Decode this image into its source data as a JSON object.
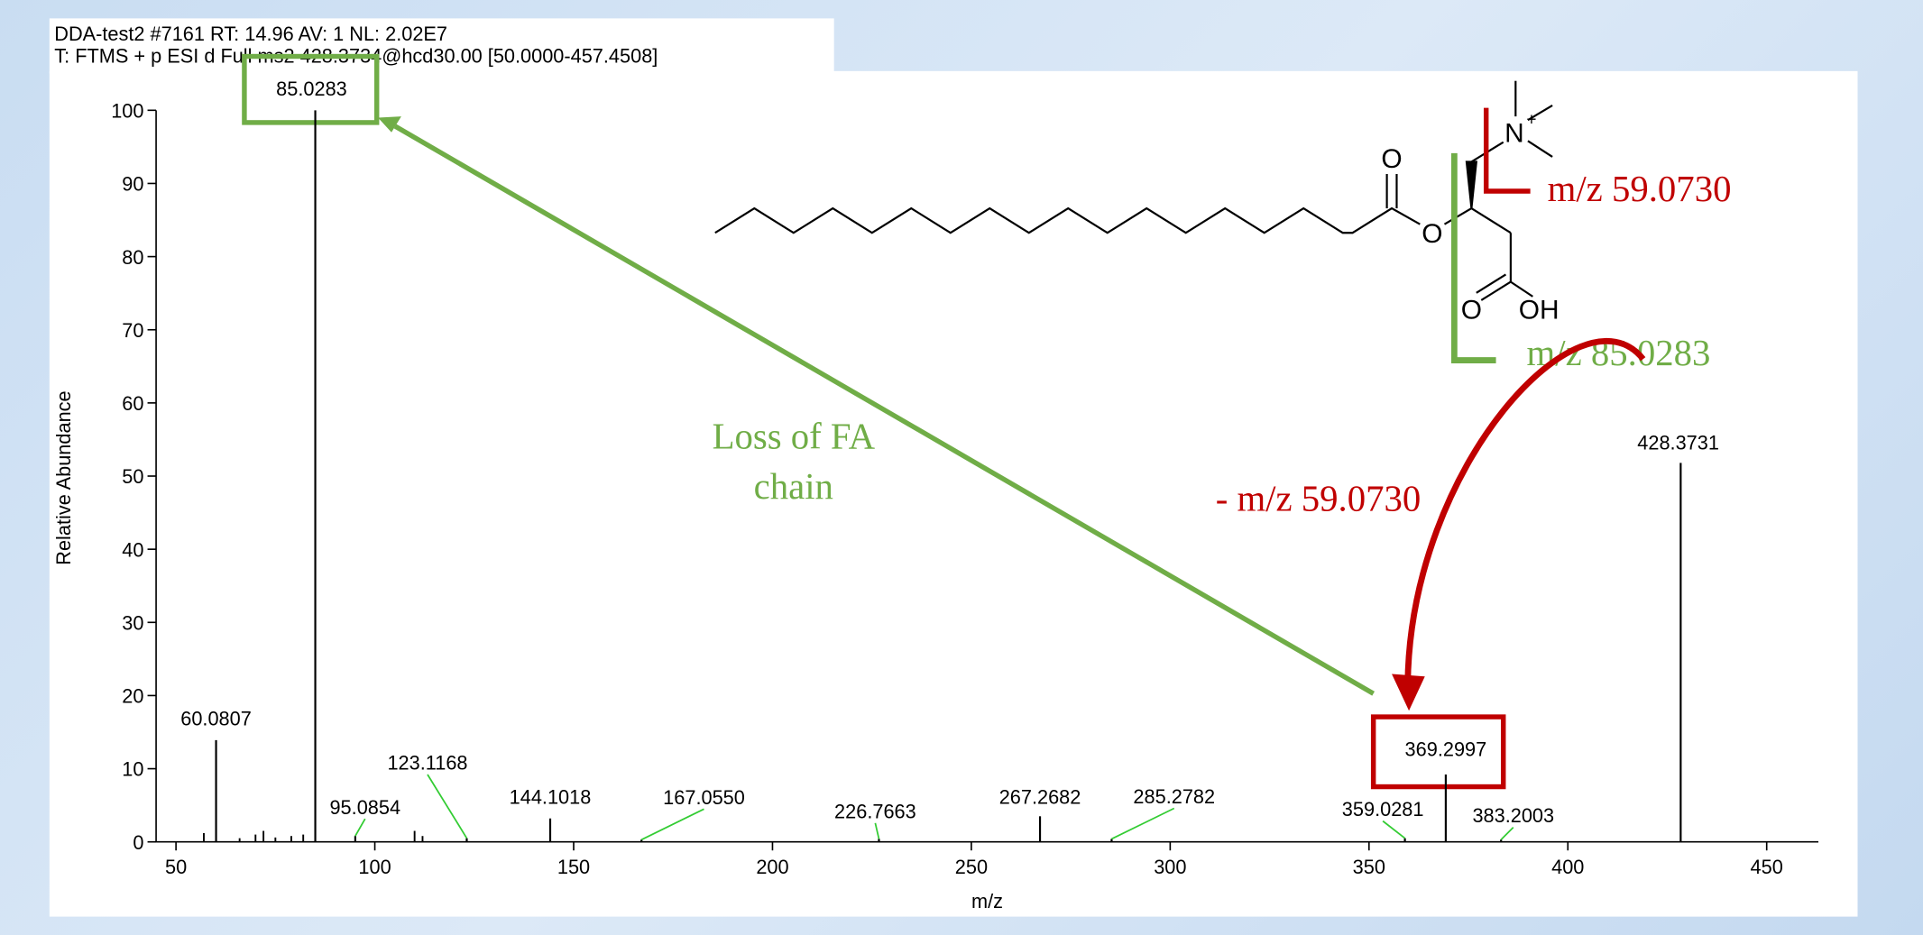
{
  "header": {
    "line1": "DDA-test2 #7161 RT: 14.96 AV: 1 NL: 2.02E7",
    "line2": "T: FTMS + p ESI d Full ms2 428.3734@hcd30.00 [50.0000-457.4508]"
  },
  "chart_data": {
    "type": "bar",
    "xlabel": "m/z",
    "ylabel": "Relative Abundance",
    "x": [
      60.0807,
      85.0283,
      95.0854,
      123.1168,
      144.1018,
      167.055,
      226.7663,
      267.2682,
      285.2782,
      359.0281,
      369.2997,
      383.2003,
      428.3731
    ],
    "x_labels": [
      "60.0807",
      "85.0283",
      "95.0854",
      "123.1168",
      "144.1018",
      "167.0550",
      "226.7663",
      "267.2682",
      "285.2782",
      "359.0281",
      "369.2997",
      "383.2003",
      "428.3731"
    ],
    "values": [
      13.9,
      100,
      0.8,
      0.5,
      3.2,
      0.3,
      0.4,
      3.5,
      0.4,
      0.5,
      9.2,
      0.3,
      51.8
    ],
    "minor_x": [
      57,
      66,
      70,
      72,
      75,
      79,
      82,
      110,
      112
    ],
    "minor_values": [
      1.2,
      0.5,
      1.0,
      1.5,
      0.6,
      0.8,
      1.0,
      1.5,
      0.8
    ],
    "color": "#000000",
    "xlim": [
      45,
      463
    ],
    "ylim": [
      0,
      100
    ],
    "xticks": [
      50,
      100,
      150,
      200,
      250,
      300,
      350,
      400,
      450
    ],
    "yticks": [
      0,
      10,
      20,
      30,
      40,
      50,
      60,
      70,
      80,
      90,
      100
    ]
  },
  "annotations": {
    "loss_line1": "Loss of FA",
    "loss_line2": "chain",
    "neutral_loss": "- m/z 59.0730",
    "fragment_red": "m/z 59.0730",
    "fragment_green": "m/z 85.0283",
    "atom_carbonyl_o": "O",
    "atom_ester_o": "O",
    "atom_acid_o": "O",
    "atom_oh": "OH",
    "atom_n": "N",
    "atom_charge": "+"
  }
}
